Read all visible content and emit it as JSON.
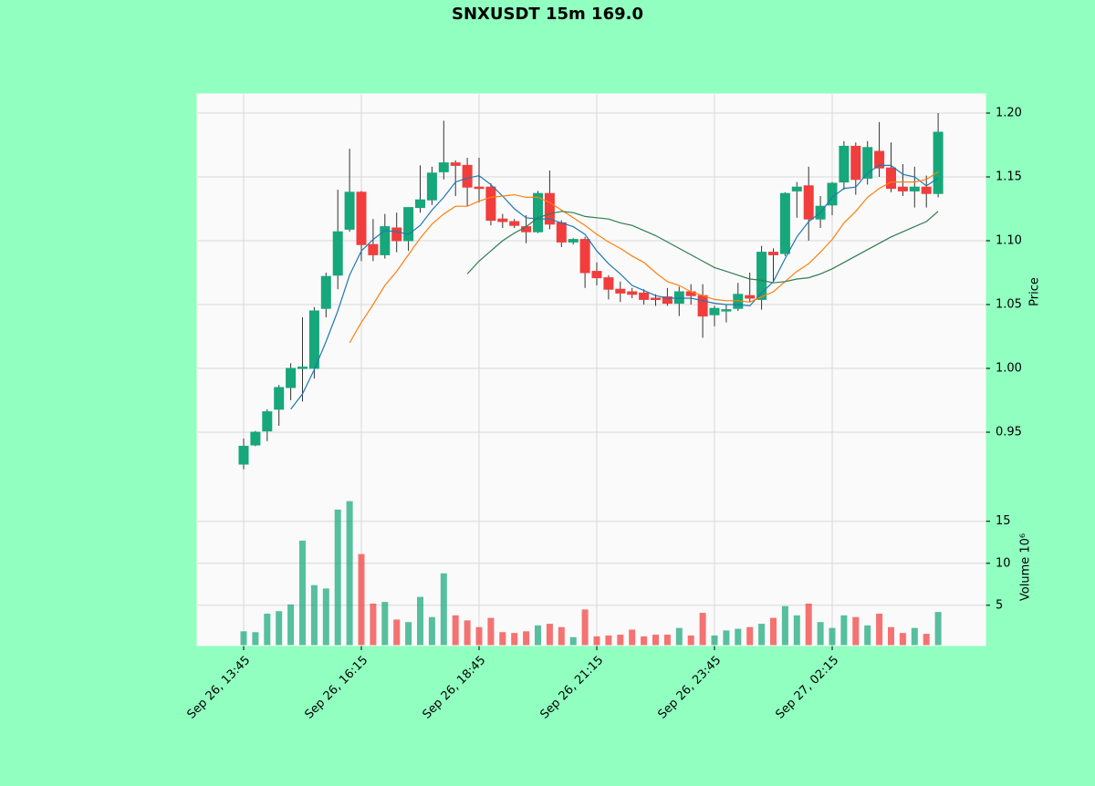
{
  "chart_data": {
    "type": "candlestick",
    "title": "SNXUSDT 15m 169.0",
    "ylabel": "Price",
    "categories": [
      "Sep 26, 13:45",
      null,
      null,
      null,
      null,
      null,
      null,
      null,
      null,
      null,
      "Sep 26, 16:15",
      null,
      null,
      null,
      null,
      null,
      null,
      null,
      null,
      null,
      "Sep 26, 18:45",
      null,
      null,
      null,
      null,
      null,
      null,
      null,
      null,
      null,
      "Sep 26, 21:15",
      null,
      null,
      null,
      null,
      null,
      null,
      null,
      null,
      null,
      "Sep 26, 23:45",
      null,
      null,
      null,
      null,
      null,
      null,
      null,
      null,
      null,
      "Sep 27, 02:15",
      null,
      null,
      null,
      null,
      null,
      null,
      null,
      null,
      null
    ],
    "open": [
      0.925,
      0.94,
      0.951,
      0.968,
      0.985,
      1.0,
      1.0,
      1.047,
      1.073,
      1.109,
      1.138,
      1.097,
      1.089,
      1.11,
      1.1,
      1.126,
      1.132,
      1.154,
      1.161,
      1.159,
      1.142,
      1.142,
      1.117,
      1.115,
      1.111,
      1.107,
      1.137,
      1.114,
      1.099,
      1.101,
      1.076,
      1.071,
      1.062,
      1.06,
      1.059,
      1.055,
      1.056,
      1.051,
      1.06,
      1.057,
      1.042,
      1.045,
      1.047,
      1.057,
      1.054,
      1.091,
      1.09,
      1.139,
      1.143,
      1.117,
      1.128,
      1.146,
      1.174,
      1.149,
      1.17,
      1.157,
      1.142,
      1.139,
      1.142,
      1.137
    ],
    "high": [
      0.945,
      0.951,
      0.968,
      0.987,
      1.004,
      1.04,
      1.048,
      1.075,
      1.14,
      1.172,
      1.139,
      1.117,
      1.121,
      1.122,
      1.126,
      1.159,
      1.158,
      1.194,
      1.163,
      1.165,
      1.165,
      1.145,
      1.121,
      1.117,
      1.12,
      1.139,
      1.155,
      1.116,
      1.102,
      1.103,
      1.083,
      1.073,
      1.068,
      1.063,
      1.062,
      1.058,
      1.063,
      1.064,
      1.066,
      1.066,
      1.049,
      1.05,
      1.067,
      1.075,
      1.096,
      1.094,
      1.138,
      1.146,
      1.158,
      1.135,
      1.146,
      1.178,
      1.177,
      1.178,
      1.193,
      1.177,
      1.16,
      1.158,
      1.151,
      1.2
    ],
    "low": [
      0.921,
      0.939,
      0.943,
      0.955,
      0.975,
      0.974,
      0.992,
      1.04,
      1.062,
      1.107,
      1.084,
      1.084,
      1.086,
      1.091,
      1.092,
      1.122,
      1.128,
      1.148,
      1.135,
      1.127,
      1.13,
      1.112,
      1.11,
      1.11,
      1.098,
      1.106,
      1.109,
      1.095,
      1.097,
      1.063,
      1.065,
      1.054,
      1.052,
      1.055,
      1.05,
      1.049,
      1.049,
      1.041,
      1.05,
      1.024,
      1.033,
      1.036,
      1.045,
      1.052,
      1.046,
      1.068,
      1.088,
      1.118,
      1.1,
      1.11,
      1.12,
      1.14,
      1.136,
      1.144,
      1.15,
      1.138,
      1.135,
      1.126,
      1.126,
      1.134
    ],
    "close": [
      0.939,
      0.95,
      0.966,
      0.985,
      1.0,
      1.001,
      1.045,
      1.072,
      1.107,
      1.138,
      1.097,
      1.089,
      1.111,
      1.1,
      1.126,
      1.132,
      1.153,
      1.161,
      1.159,
      1.142,
      1.141,
      1.116,
      1.115,
      1.112,
      1.107,
      1.137,
      1.113,
      1.099,
      1.101,
      1.075,
      1.071,
      1.062,
      1.059,
      1.058,
      1.054,
      1.054,
      1.051,
      1.06,
      1.057,
      1.041,
      1.047,
      1.046,
      1.058,
      1.055,
      1.091,
      1.089,
      1.137,
      1.142,
      1.117,
      1.127,
      1.145,
      1.174,
      1.148,
      1.173,
      1.157,
      1.141,
      1.139,
      1.142,
      1.137,
      1.185
    ],
    "up_color": "#16a77a",
    "down_color": "#f23d3d",
    "ylim": [
      0.905,
      1.215
    ],
    "yticks": [
      0.95,
      {
        "value": 1.0,
        "label": "1.00"
      },
      1.05,
      {
        "value": 1.1,
        "label": "1.10"
      },
      1.15,
      {
        "value": 1.2,
        "label": "1.20"
      }
    ],
    "grid": true,
    "series": [
      {
        "color": "#1f77b4",
        "values": [
          null,
          null,
          null,
          null,
          0.968,
          0.98,
          0.999,
          1.021,
          1.045,
          1.073,
          1.092,
          1.101,
          1.108,
          1.107,
          1.105,
          1.112,
          1.124,
          1.134,
          1.146,
          1.149,
          1.151,
          1.144,
          1.135,
          1.125,
          1.118,
          1.117,
          1.117,
          1.114,
          1.111,
          1.105,
          1.092,
          1.082,
          1.074,
          1.065,
          1.061,
          1.057,
          1.055,
          1.055,
          1.055,
          1.053,
          1.051,
          1.05,
          1.05,
          1.049,
          1.059,
          1.068,
          1.086,
          1.103,
          1.115,
          1.122,
          1.134,
          1.141,
          1.142,
          1.153,
          1.159,
          1.159,
          1.152,
          1.15,
          1.143,
          1.149
        ]
      },
      {
        "color": "#ff7f0e",
        "values": [
          null,
          null,
          null,
          null,
          null,
          null,
          null,
          null,
          null,
          1.02,
          1.036,
          1.05,
          1.065,
          1.076,
          1.089,
          1.102,
          1.113,
          1.121,
          1.127,
          1.127,
          1.131,
          1.134,
          1.135,
          1.136,
          1.134,
          1.134,
          1.13,
          1.124,
          1.118,
          1.112,
          1.105,
          1.099,
          1.094,
          1.088,
          1.083,
          1.075,
          1.068,
          1.065,
          1.06,
          1.057,
          1.054,
          1.053,
          1.053,
          1.052,
          1.056,
          1.06,
          1.068,
          1.076,
          1.082,
          1.091,
          1.101,
          1.114,
          1.123,
          1.134,
          1.141,
          1.146,
          1.146,
          1.146,
          1.148,
          1.154
        ]
      },
      {
        "color": "#2e7d4f",
        "values": [
          null,
          null,
          null,
          null,
          null,
          null,
          null,
          null,
          null,
          null,
          null,
          null,
          null,
          null,
          null,
          null,
          null,
          null,
          null,
          1.074,
          1.084,
          1.092,
          1.1,
          1.106,
          1.111,
          1.118,
          1.121,
          1.123,
          1.122,
          1.119,
          1.118,
          1.117,
          1.114,
          1.112,
          1.108,
          1.104,
          1.099,
          1.094,
          1.089,
          1.084,
          1.079,
          1.076,
          1.073,
          1.07,
          1.069,
          1.067,
          1.068,
          1.07,
          1.071,
          1.074,
          1.078,
          1.083,
          1.088,
          1.093,
          1.098,
          1.103,
          1.107,
          1.111,
          1.115,
          1.123
        ]
      }
    ],
    "volume": {
      "label": "Volume  10⁶",
      "values": [
        1.9,
        1.8,
        4.0,
        4.3,
        5.1,
        12.7,
        7.4,
        7.0,
        16.4,
        17.4,
        11.1,
        5.2,
        5.4,
        3.3,
        3.0,
        6.0,
        3.6,
        8.8,
        3.8,
        3.2,
        2.4,
        3.5,
        1.8,
        1.7,
        1.9,
        2.6,
        2.8,
        2.4,
        1.2,
        4.5,
        1.3,
        1.4,
        1.5,
        2.1,
        1.3,
        1.5,
        1.5,
        2.3,
        1.4,
        4.1,
        1.4,
        2.0,
        2.2,
        2.4,
        2.8,
        3.5,
        4.9,
        3.8,
        5.2,
        3.0,
        2.3,
        3.8,
        3.6,
        2.6,
        4.0,
        2.4,
        1.7,
        2.3,
        1.6,
        4.2
      ],
      "ylim": [
        0.2,
        17.9
      ],
      "yticks": [
        5,
        10,
        15
      ]
    }
  }
}
